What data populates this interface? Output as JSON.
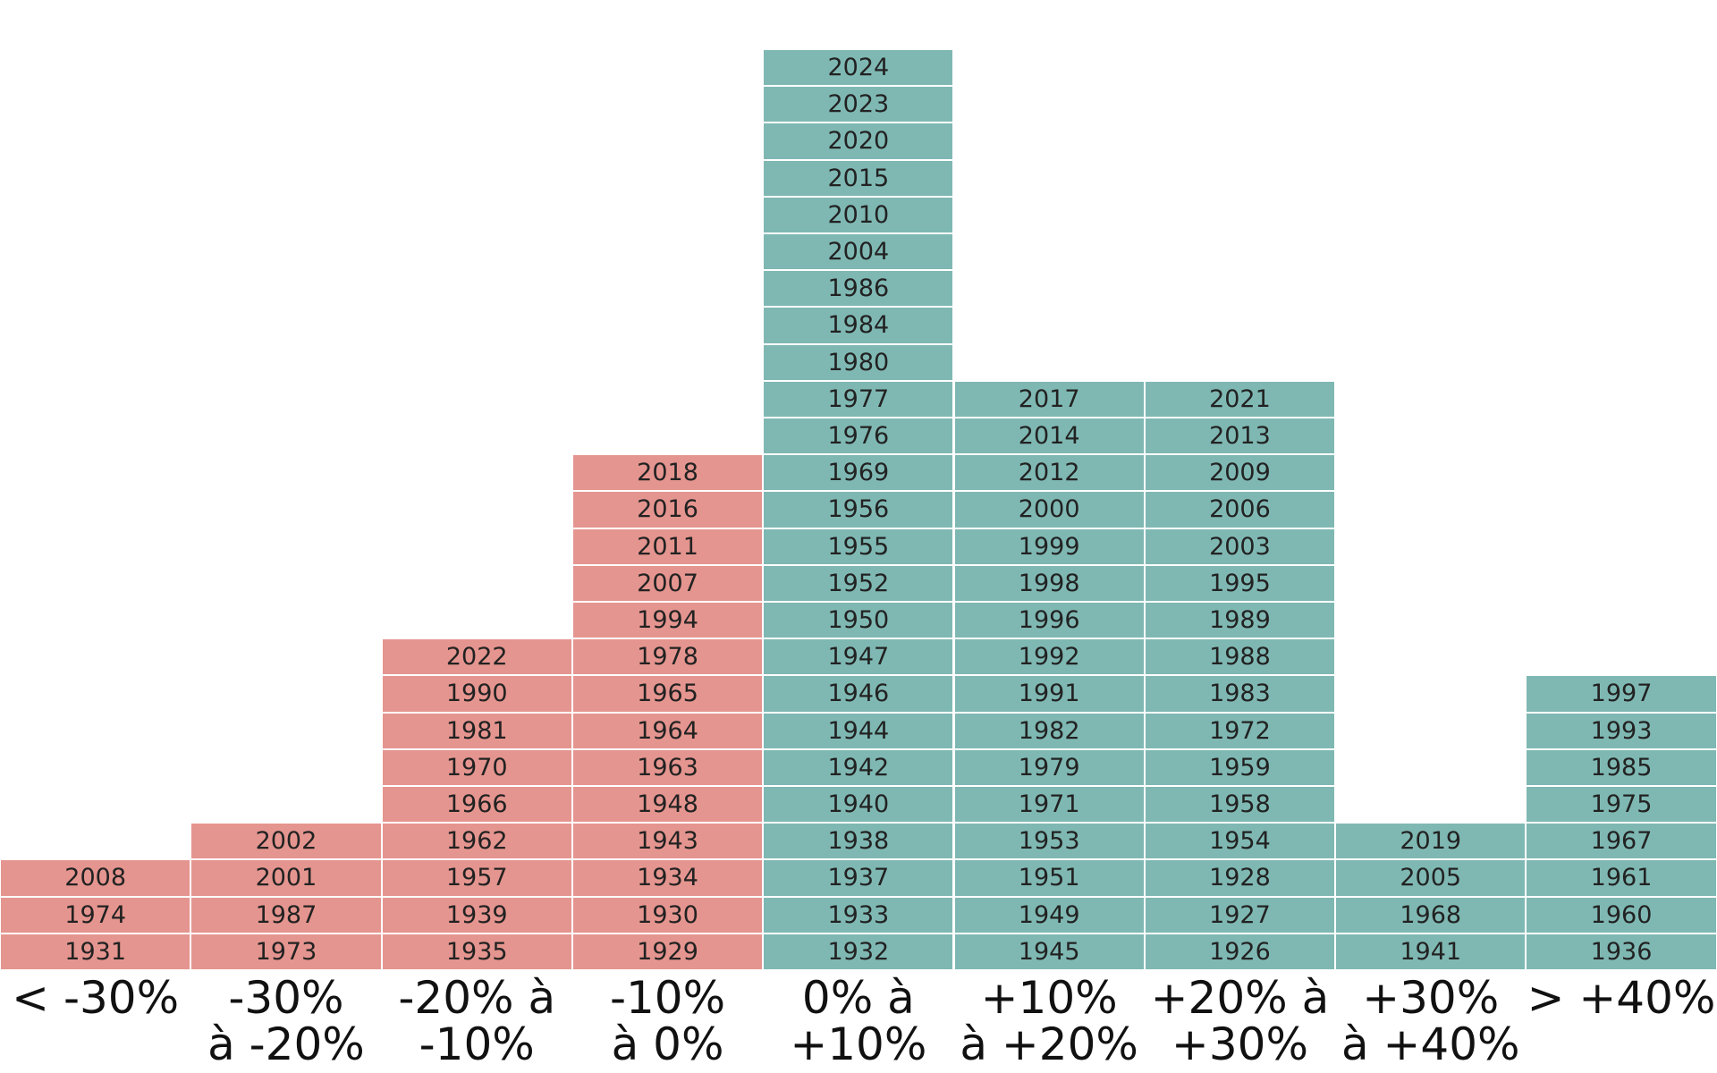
{
  "columns": [
    {
      "label": [
        "< -30%"
      ],
      "color": "#e5958f",
      "years": [
        2008,
        1974,
        1931
      ]
    },
    {
      "label": [
        "-30%",
        "à -20%"
      ],
      "color": "#e5958f",
      "years": [
        2002,
        2001,
        1987,
        1973
      ]
    },
    {
      "label": [
        "-20% à",
        "-10%"
      ],
      "color": "#e5958f",
      "years": [
        2022,
        1990,
        1981,
        1970,
        1966,
        1962,
        1957,
        1939,
        1935
      ]
    },
    {
      "label": [
        "-10%",
        "à 0%"
      ],
      "color": "#e5958f",
      "years": [
        2018,
        2016,
        2011,
        2007,
        1994,
        1978,
        1965,
        1964,
        1963,
        1948,
        1943,
        1934,
        1930,
        1929
      ]
    },
    {
      "label": [
        "0% à",
        "+10%"
      ],
      "color": "#7fb8b3",
      "years": [
        2024,
        2023,
        2020,
        2015,
        2010,
        2004,
        1986,
        1984,
        1980,
        1977,
        1976,
        1969,
        1956,
        1955,
        1952,
        1950,
        1947,
        1946,
        1944,
        1942,
        1940,
        1938,
        1937,
        1933,
        1932
      ]
    },
    {
      "label": [
        "+10%",
        "à +20%"
      ],
      "color": "#7fb8b3",
      "years": [
        2017,
        2014,
        2012,
        2000,
        1999,
        1998,
        1996,
        1992,
        1991,
        1982,
        1979,
        1971,
        1953,
        1951,
        1949,
        1945
      ]
    },
    {
      "label": [
        "+20% à",
        "+30%"
      ],
      "color": "#7fb8b3",
      "years": [
        2021,
        2013,
        2009,
        2006,
        2003,
        1995,
        1989,
        1988,
        1983,
        1972,
        1959,
        1958,
        1954,
        1928,
        1927,
        1926
      ]
    },
    {
      "label": [
        "+30%",
        "à +40%"
      ],
      "color": "#7fb8b3",
      "years": [
        2019,
        2005,
        1968,
        1941
      ]
    },
    {
      "label": [
        "> +40%"
      ],
      "color": "#7fb8b3",
      "years": [
        1997,
        1993,
        1985,
        1975,
        1967,
        1961,
        1960,
        1936
      ]
    }
  ]
}
